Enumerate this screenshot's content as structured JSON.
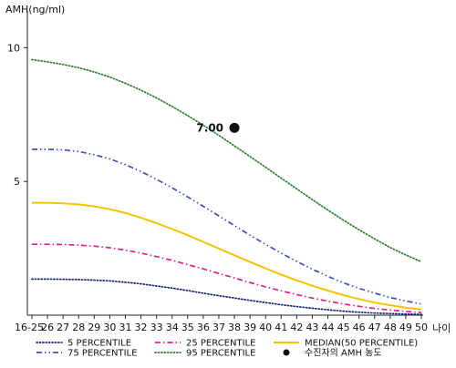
{
  "chart_data": {
    "type": "line",
    "ylabel": "AMH(ng/ml)",
    "xlabel": "나이",
    "ylim": [
      0,
      11.1
    ],
    "y_ticks": [
      5,
      10
    ],
    "categories": [
      "16-25",
      "26",
      "27",
      "28",
      "29",
      "30",
      "31",
      "32",
      "33",
      "34",
      "35",
      "36",
      "37",
      "38",
      "39",
      "40",
      "41",
      "42",
      "43",
      "44",
      "45",
      "46",
      "47",
      "48",
      "49",
      "50"
    ],
    "grid": false,
    "legend_position": "bottom",
    "series": [
      {
        "name": "5 PERCENTILE",
        "color": "#1a237e",
        "style": "dotted",
        "values": [
          1.35,
          1.35,
          1.34,
          1.33,
          1.31,
          1.28,
          1.23,
          1.17,
          1.09,
          1.01,
          0.92,
          0.82,
          0.73,
          0.64,
          0.55,
          0.47,
          0.39,
          0.32,
          0.26,
          0.2,
          0.15,
          0.11,
          0.08,
          0.06,
          0.04,
          0.03
        ]
      },
      {
        "name": "25 PERCENTILE",
        "color": "#e91e8c",
        "style": "dashdot",
        "values": [
          2.65,
          2.65,
          2.64,
          2.62,
          2.58,
          2.52,
          2.43,
          2.32,
          2.19,
          2.05,
          1.89,
          1.73,
          1.56,
          1.39,
          1.22,
          1.06,
          0.91,
          0.77,
          0.64,
          0.52,
          0.42,
          0.33,
          0.25,
          0.19,
          0.14,
          0.1
        ]
      },
      {
        "name": "MEDIAN(50 PERCENTILE)",
        "color": "#f5c400",
        "style": "solid",
        "values": [
          4.2,
          4.2,
          4.18,
          4.14,
          4.07,
          3.96,
          3.82,
          3.64,
          3.44,
          3.22,
          2.99,
          2.74,
          2.49,
          2.24,
          1.99,
          1.75,
          1.52,
          1.3,
          1.1,
          0.92,
          0.75,
          0.6,
          0.47,
          0.37,
          0.28,
          0.21
        ]
      },
      {
        "name": "75 PERCENTILE",
        "color": "#3f51b5",
        "style": "dashdotdot",
        "values": [
          6.2,
          6.2,
          6.18,
          6.12,
          6.0,
          5.84,
          5.63,
          5.37,
          5.08,
          4.76,
          4.42,
          4.07,
          3.71,
          3.35,
          2.99,
          2.65,
          2.32,
          2.01,
          1.72,
          1.45,
          1.21,
          1.0,
          0.82,
          0.66,
          0.53,
          0.42
        ]
      },
      {
        "name": "95 PERCENTILE",
        "color": "#2e7d32",
        "style": "dotted",
        "values": [
          9.55,
          9.47,
          9.37,
          9.25,
          9.09,
          8.9,
          8.67,
          8.41,
          8.12,
          7.8,
          7.46,
          7.1,
          6.72,
          6.33,
          5.93,
          5.53,
          5.12,
          4.72,
          4.32,
          3.93,
          3.55,
          3.19,
          2.85,
          2.53,
          2.25,
          2.0
        ]
      }
    ],
    "patient": {
      "name": "수진자의 AMH 농도",
      "x": "38",
      "y": 7.0,
      "label": "7.00",
      "color": "#111111"
    }
  }
}
